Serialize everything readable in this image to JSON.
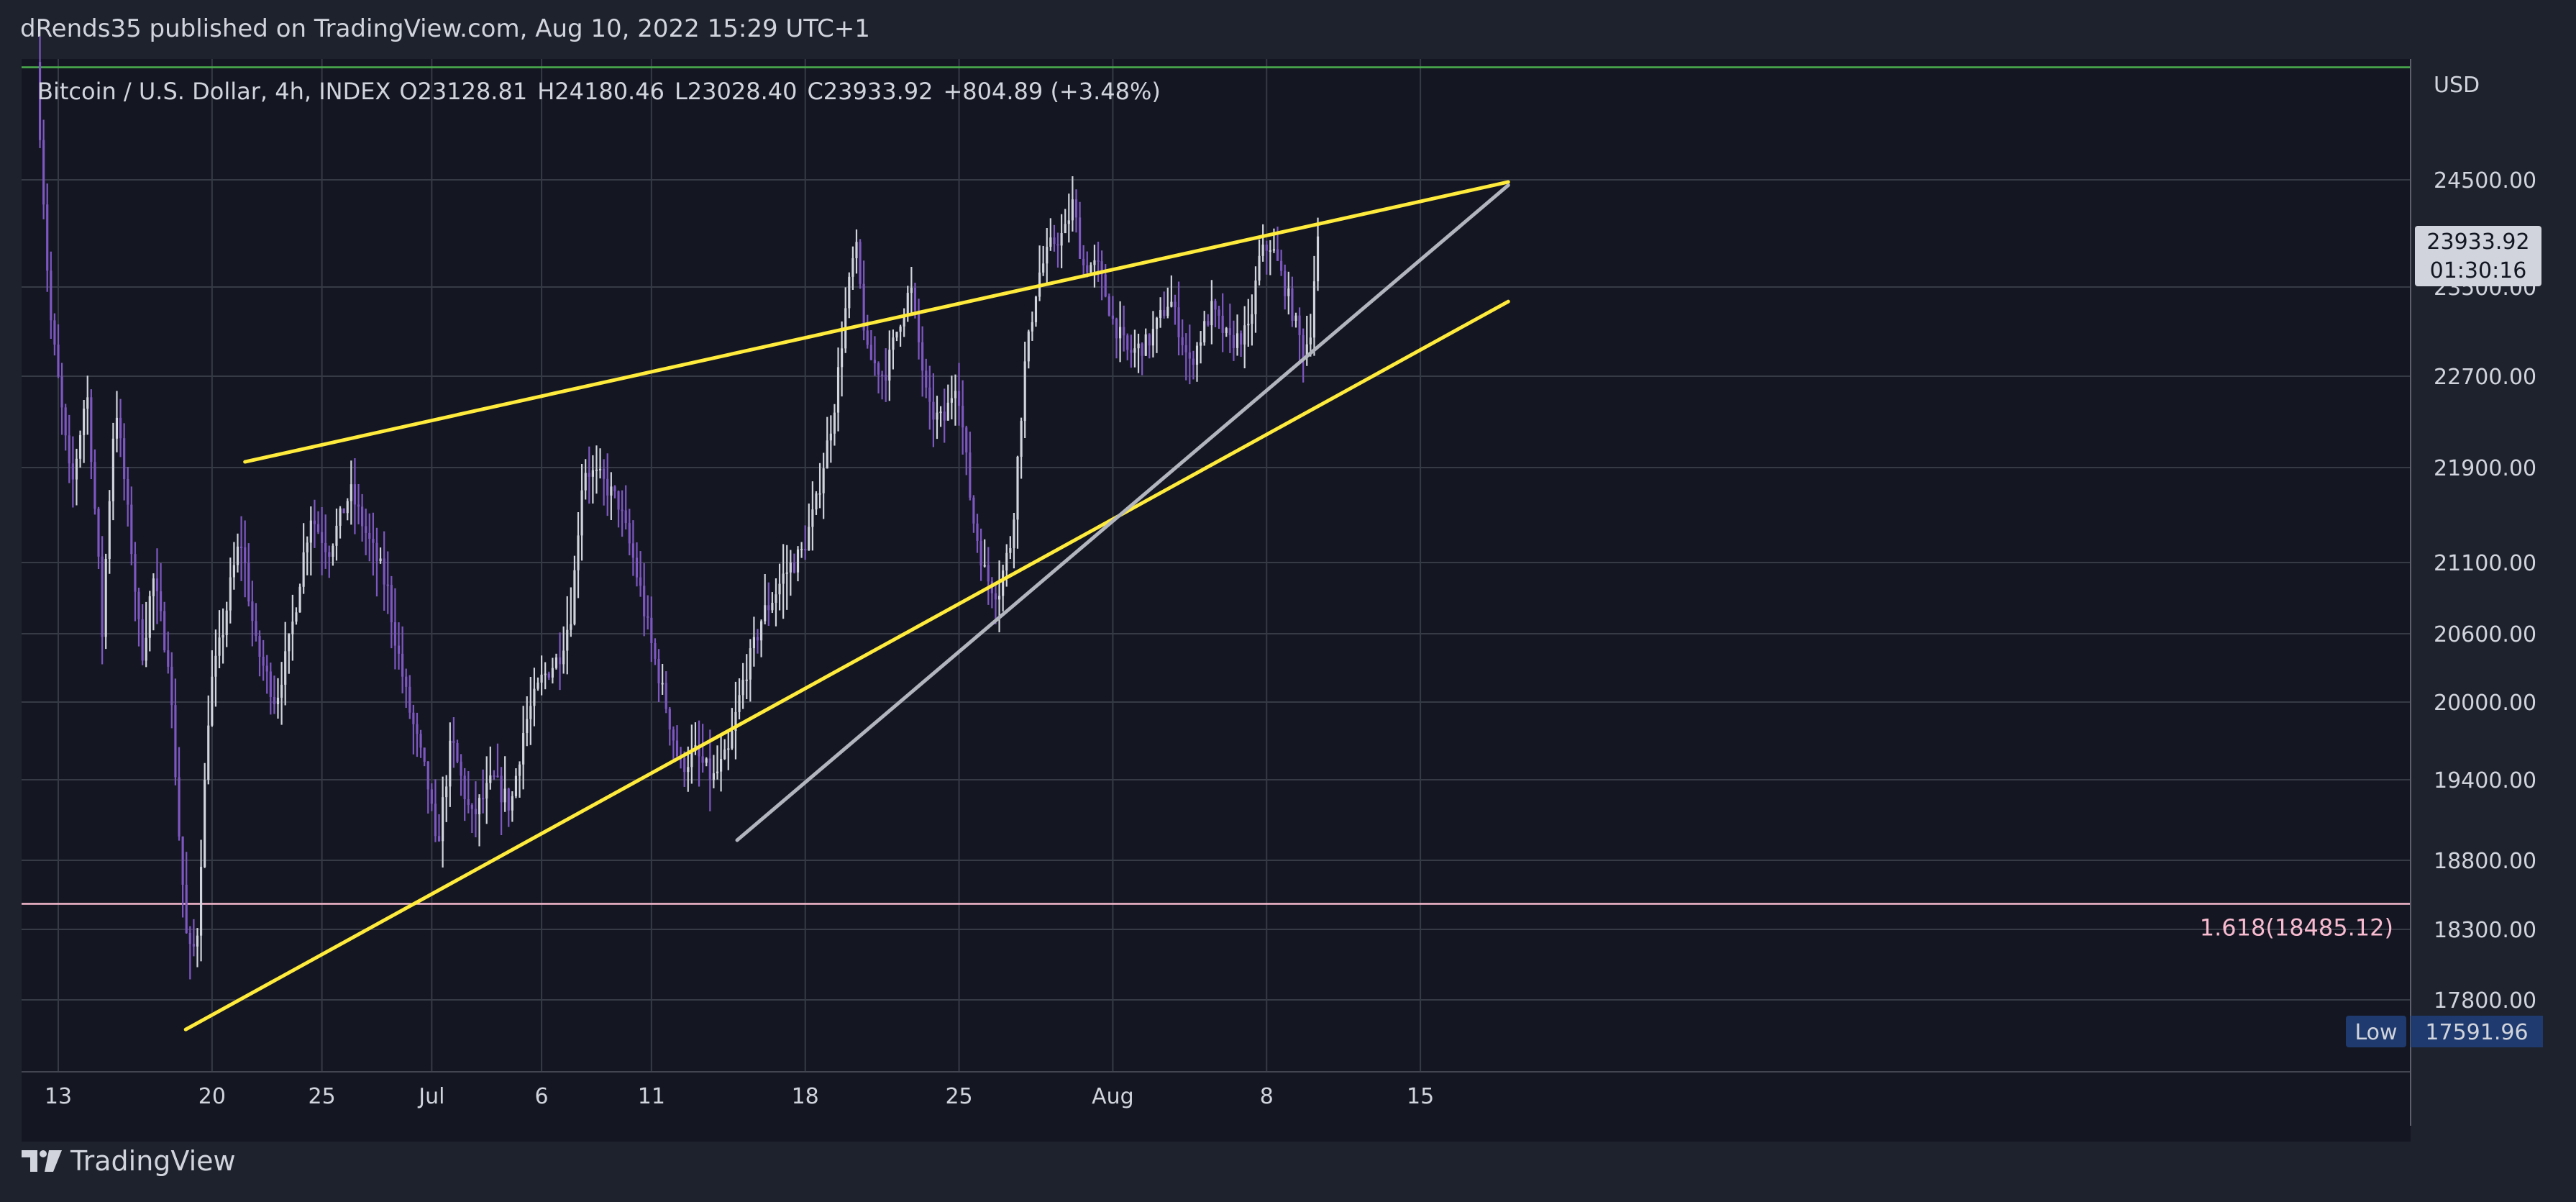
{
  "header": {
    "published": "dRends35 published on TradingView.com, Aug 10, 2022 15:29 UTC+1"
  },
  "footer": {
    "brand": "TradingView"
  },
  "colors": {
    "outer_bg": "#1e222d",
    "chart_bg": "#141722",
    "grid": "#363a45",
    "text": "#d1d4dc",
    "up": "#d1d4dc",
    "down": "#7e57c2",
    "trend_yellow": "#ffeb3b",
    "trend_gray": "#b2b5be",
    "high_line": "#4caf50",
    "fib_line": "#f8bbd0",
    "low_label_bg": "#1e3a6e"
  },
  "chart_data": {
    "type": "candlestick",
    "title": "Bitcoin / U.S. Dollar, 4h, INDEX",
    "ohlc_text": {
      "open_label": "O",
      "open": "23128.81",
      "high_label": "H",
      "high": "24180.46",
      "low_label": "L",
      "low": "23028.40",
      "close_label": "C",
      "close": "23933.92",
      "change": "+804.89 (+3.48%)"
    },
    "currency": "USD",
    "y_ticks": [
      {
        "value": 24500,
        "label": "24500.00"
      },
      {
        "value": 23500,
        "label": "23500.00"
      },
      {
        "value": 22700,
        "label": "22700.00"
      },
      {
        "value": 21900,
        "label": "21900.00"
      },
      {
        "value": 21100,
        "label": "21100.00"
      },
      {
        "value": 20600,
        "label": "20600.00"
      },
      {
        "value": 20000,
        "label": "20000.00"
      },
      {
        "value": 19400,
        "label": "19400.00"
      },
      {
        "value": 18800,
        "label": "18800.00"
      },
      {
        "value": 18300,
        "label": "18300.00"
      },
      {
        "value": 17800,
        "label": "17800.00"
      }
    ],
    "x_ticks": [
      {
        "day": 13,
        "label": "13"
      },
      {
        "day": 20,
        "label": "20"
      },
      {
        "day": 25,
        "label": "25"
      },
      {
        "day": 30,
        "label": "Jul"
      },
      {
        "day": 35,
        "label": "6"
      },
      {
        "day": 40,
        "label": "11"
      },
      {
        "day": 47,
        "label": "18"
      },
      {
        "day": 54,
        "label": "25"
      },
      {
        "day": 61,
        "label": "Aug"
      },
      {
        "day": 68,
        "label": "8"
      },
      {
        "day": 75,
        "label": "15"
      }
    ],
    "x_axis_note": "days counted from Jun 1, 2022",
    "last_price": {
      "value": 23933.92,
      "label": "23933.92",
      "countdown": "01:30:16"
    },
    "low_marker": {
      "value": 17591.96,
      "name": "Low",
      "label": "17591.96"
    },
    "horizontal_lines": [
      {
        "name": "period-high",
        "value": 25550
      },
      {
        "name": "fib-1.618",
        "value": 18485.12,
        "label": "1.618(18485.12)"
      }
    ],
    "trendlines": [
      {
        "name": "upper-resistance",
        "points": [
          [
            21.5,
            21950
          ],
          [
            79,
            24480
          ]
        ]
      },
      {
        "name": "lower-support",
        "points": [
          [
            18.8,
            17590
          ],
          [
            79,
            23370
          ]
        ]
      },
      {
        "name": "gray-support",
        "points": [
          [
            43.9,
            18950
          ],
          [
            79,
            24450
          ]
        ]
      }
    ],
    "price_anchors": [
      [
        12.0,
        25600
      ],
      [
        12.6,
        23300
      ],
      [
        13.6,
        21700
      ],
      [
        14.3,
        22600
      ],
      [
        15.0,
        20600
      ],
      [
        15.6,
        22500
      ],
      [
        16.8,
        20400
      ],
      [
        17.3,
        21000
      ],
      [
        18.0,
        20400
      ],
      [
        18.5,
        19000
      ],
      [
        18.9,
        18100
      ],
      [
        19.3,
        18200
      ],
      [
        19.9,
        20100
      ],
      [
        20.8,
        20900
      ],
      [
        21.3,
        21300
      ],
      [
        22.0,
        20500
      ],
      [
        22.9,
        20000
      ],
      [
        23.6,
        20600
      ],
      [
        24.5,
        21500
      ],
      [
        25.3,
        21200
      ],
      [
        26.3,
        21700
      ],
      [
        27.1,
        21300
      ],
      [
        28.0,
        20900
      ],
      [
        28.9,
        20000
      ],
      [
        29.9,
        19300
      ],
      [
        30.2,
        18850
      ],
      [
        30.9,
        19700
      ],
      [
        31.8,
        19100
      ],
      [
        32.8,
        19400
      ],
      [
        33.6,
        19200
      ],
      [
        34.2,
        19800
      ],
      [
        35.0,
        20200
      ],
      [
        35.8,
        20400
      ],
      [
        36.4,
        20800
      ],
      [
        36.9,
        21900
      ],
      [
        37.7,
        21800
      ],
      [
        38.5,
        21600
      ],
      [
        39.5,
        20900
      ],
      [
        40.5,
        20100
      ],
      [
        41.3,
        19500
      ],
      [
        42.0,
        19600
      ],
      [
        42.8,
        19400
      ],
      [
        43.5,
        19600
      ],
      [
        44.2,
        20200
      ],
      [
        45.0,
        20700
      ],
      [
        46.0,
        21000
      ],
      [
        46.9,
        21200
      ],
      [
        47.5,
        21600
      ],
      [
        48.3,
        22400
      ],
      [
        48.9,
        23400
      ],
      [
        49.3,
        23900
      ],
      [
        49.8,
        22900
      ],
      [
        50.6,
        22700
      ],
      [
        51.3,
        23200
      ],
      [
        51.8,
        23500
      ],
      [
        52.6,
        22400
      ],
      [
        53.3,
        22300
      ],
      [
        53.9,
        22700
      ],
      [
        54.6,
        21500
      ],
      [
        55.2,
        21000
      ],
      [
        55.8,
        20900
      ],
      [
        56.4,
        21300
      ],
      [
        57.0,
        22800
      ],
      [
        57.6,
        23600
      ],
      [
        58.2,
        23900
      ],
      [
        58.8,
        24000
      ],
      [
        59.2,
        24300
      ],
      [
        59.6,
        23700
      ],
      [
        60.3,
        23700
      ],
      [
        61.0,
        23200
      ],
      [
        61.7,
        22900
      ],
      [
        62.6,
        23000
      ],
      [
        63.6,
        23400
      ],
      [
        64.5,
        22800
      ],
      [
        65.5,
        23300
      ],
      [
        66.3,
        23000
      ],
      [
        67.2,
        23100
      ],
      [
        67.7,
        23800
      ],
      [
        68.2,
        23900
      ],
      [
        69.0,
        23400
      ],
      [
        69.7,
        22900
      ],
      [
        70.0,
        23129
      ],
      [
        70.3,
        23934
      ]
    ]
  }
}
